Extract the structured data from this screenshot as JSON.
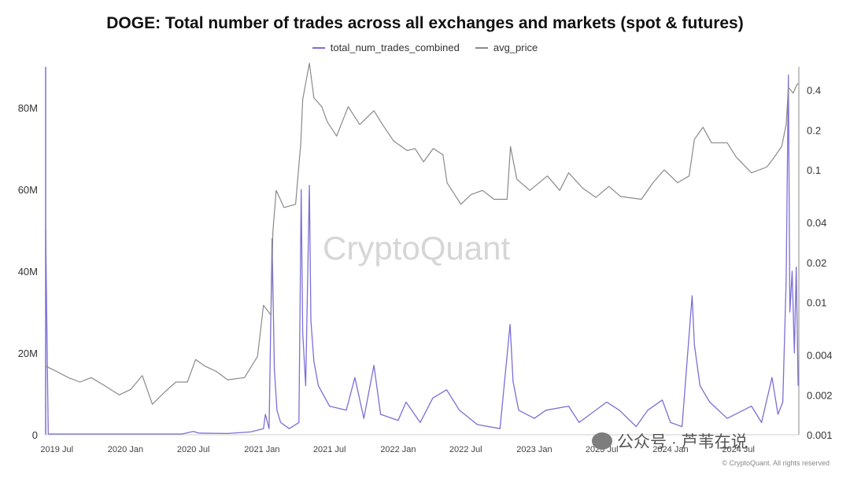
{
  "title": "DOGE: Total number of trades across all exchanges and markets (spot & futures)",
  "legend": [
    {
      "label": "total_num_trades_combined",
      "color": "#7b6fd6"
    },
    {
      "label": "avg_price",
      "color": "#8a8a8a"
    }
  ],
  "watermark": "CryptoQuant",
  "wechat_label": "公众号 · 芦苇在说",
  "copyright": "© CryptoQuant. All rights reserved",
  "chart_data": {
    "type": "line",
    "x_axis": {
      "type": "date",
      "range": [
        "2019-06-01",
        "2024-12-10"
      ],
      "tick_labels": [
        {
          "label": "2019 Jul",
          "date": "2019-07-01"
        },
        {
          "label": "2020 Jan",
          "date": "2020-01-01"
        },
        {
          "label": "2020 Jul",
          "date": "2020-07-01"
        },
        {
          "label": "2021 Jan",
          "date": "2021-01-01"
        },
        {
          "label": "2021 Jul",
          "date": "2021-07-01"
        },
        {
          "label": "2022 Jan",
          "date": "2022-01-01"
        },
        {
          "label": "2022 Jul",
          "date": "2022-07-01"
        },
        {
          "label": "2023 Jan",
          "date": "2023-01-01"
        },
        {
          "label": "2023 Jul",
          "date": "2023-07-01"
        },
        {
          "label": "2024 Jan",
          "date": "2024-01-01"
        },
        {
          "label": "2024 Jul",
          "date": "2024-07-01"
        }
      ]
    },
    "y_left": {
      "range": [
        0,
        90000000
      ],
      "ticks": [
        {
          "label": "0",
          "value": 0
        },
        {
          "label": "20M",
          "value": 20000000
        },
        {
          "label": "40M",
          "value": 40000000
        },
        {
          "label": "60M",
          "value": 60000000
        },
        {
          "label": "80M",
          "value": 80000000
        }
      ]
    },
    "y_right": {
      "scale": "log",
      "range": [
        0.001,
        0.6
      ],
      "ticks": [
        {
          "label": "0.001",
          "value": 0.001
        },
        {
          "label": "0.002",
          "value": 0.002
        },
        {
          "label": "0.004",
          "value": 0.004
        },
        {
          "label": "0.01",
          "value": 0.01
        },
        {
          "label": "0.02",
          "value": 0.02
        },
        {
          "label": "0.04",
          "value": 0.04
        },
        {
          "label": "0.1",
          "value": 0.1
        },
        {
          "label": "0.2",
          "value": 0.2
        },
        {
          "label": "0.4",
          "value": 0.4
        }
      ]
    },
    "grid": false,
    "legend_position": "top-center",
    "series": [
      {
        "name": "total_num_trades_combined",
        "axis": "left",
        "color": "#7b6fd6",
        "points": [
          [
            "2019-06-01",
            50000000
          ],
          [
            "2019-06-08",
            200000
          ],
          [
            "2019-09-01",
            200000
          ],
          [
            "2020-01-01",
            200000
          ],
          [
            "2020-06-01",
            200000
          ],
          [
            "2020-07-01",
            800000
          ],
          [
            "2020-07-15",
            400000
          ],
          [
            "2020-10-01",
            300000
          ],
          [
            "2020-12-01",
            700000
          ],
          [
            "2021-01-05",
            1500000
          ],
          [
            "2021-01-10",
            5000000
          ],
          [
            "2021-01-20",
            1500000
          ],
          [
            "2021-01-28",
            48000000
          ],
          [
            "2021-02-03",
            16000000
          ],
          [
            "2021-02-10",
            6000000
          ],
          [
            "2021-02-20",
            3000000
          ],
          [
            "2021-03-15",
            1500000
          ],
          [
            "2021-04-10",
            3000000
          ],
          [
            "2021-04-16",
            60000000
          ],
          [
            "2021-04-20",
            25000000
          ],
          [
            "2021-04-28",
            12000000
          ],
          [
            "2021-05-08",
            61000000
          ],
          [
            "2021-05-12",
            28000000
          ],
          [
            "2021-05-20",
            18000000
          ],
          [
            "2021-06-01",
            12000000
          ],
          [
            "2021-07-01",
            7000000
          ],
          [
            "2021-08-15",
            6000000
          ],
          [
            "2021-09-07",
            14000000
          ],
          [
            "2021-10-01",
            4000000
          ],
          [
            "2021-10-28",
            17000000
          ],
          [
            "2021-11-15",
            5000000
          ],
          [
            "2022-01-01",
            3500000
          ],
          [
            "2022-01-22",
            8000000
          ],
          [
            "2022-03-01",
            3000000
          ],
          [
            "2022-04-04",
            9000000
          ],
          [
            "2022-05-11",
            11000000
          ],
          [
            "2022-06-14",
            6000000
          ],
          [
            "2022-08-01",
            2500000
          ],
          [
            "2022-10-01",
            1500000
          ],
          [
            "2022-10-28",
            27000000
          ],
          [
            "2022-11-05",
            13000000
          ],
          [
            "2022-11-20",
            6000000
          ],
          [
            "2023-01-01",
            4000000
          ],
          [
            "2023-02-01",
            6000000
          ],
          [
            "2023-04-03",
            7000000
          ],
          [
            "2023-05-01",
            3000000
          ],
          [
            "2023-07-14",
            8000000
          ],
          [
            "2023-08-17",
            6000000
          ],
          [
            "2023-10-01",
            2000000
          ],
          [
            "2023-11-01",
            6000000
          ],
          [
            "2023-12-10",
            8500000
          ],
          [
            "2024-01-01",
            3000000
          ],
          [
            "2024-02-01",
            2000000
          ],
          [
            "2024-02-28",
            34000000
          ],
          [
            "2024-03-05",
            22000000
          ],
          [
            "2024-03-20",
            12000000
          ],
          [
            "2024-04-15",
            8000000
          ],
          [
            "2024-06-01",
            4000000
          ],
          [
            "2024-08-05",
            7000000
          ],
          [
            "2024-09-01",
            3000000
          ],
          [
            "2024-09-29",
            14000000
          ],
          [
            "2024-10-15",
            5000000
          ],
          [
            "2024-10-28",
            8000000
          ],
          [
            "2024-11-06",
            38000000
          ],
          [
            "2024-11-12",
            88000000
          ],
          [
            "2024-11-16",
            30000000
          ],
          [
            "2024-11-22",
            40000000
          ],
          [
            "2024-11-28",
            20000000
          ],
          [
            "2024-12-03",
            41000000
          ],
          [
            "2024-12-08",
            12000000
          ]
        ]
      },
      {
        "name": "avg_price",
        "axis": "right",
        "color": "#8a8a8a",
        "points": [
          [
            "2019-06-01",
            0.0033
          ],
          [
            "2019-07-01",
            0.003
          ],
          [
            "2019-08-01",
            0.0027
          ],
          [
            "2019-09-01",
            0.0025
          ],
          [
            "2019-10-01",
            0.0027
          ],
          [
            "2019-11-01",
            0.0024
          ],
          [
            "2019-12-15",
            0.002
          ],
          [
            "2020-01-15",
            0.0022
          ],
          [
            "2020-02-15",
            0.0028
          ],
          [
            "2020-03-13",
            0.0017
          ],
          [
            "2020-04-15",
            0.0021
          ],
          [
            "2020-05-15",
            0.0025
          ],
          [
            "2020-06-15",
            0.0025
          ],
          [
            "2020-07-07",
            0.0037
          ],
          [
            "2020-08-01",
            0.0033
          ],
          [
            "2020-09-01",
            0.003
          ],
          [
            "2020-10-01",
            0.0026
          ],
          [
            "2020-11-15",
            0.0027
          ],
          [
            "2020-12-20",
            0.0039
          ],
          [
            "2021-01-05",
            0.0095
          ],
          [
            "2021-01-25",
            0.008
          ],
          [
            "2021-01-30",
            0.034
          ],
          [
            "2021-02-08",
            0.07
          ],
          [
            "2021-03-01",
            0.052
          ],
          [
            "2021-04-01",
            0.055
          ],
          [
            "2021-04-15",
            0.16
          ],
          [
            "2021-04-20",
            0.34
          ],
          [
            "2021-05-08",
            0.64
          ],
          [
            "2021-05-20",
            0.35
          ],
          [
            "2021-06-10",
            0.3
          ],
          [
            "2021-06-25",
            0.23
          ],
          [
            "2021-07-20",
            0.18
          ],
          [
            "2021-08-20",
            0.3
          ],
          [
            "2021-09-20",
            0.22
          ],
          [
            "2021-10-28",
            0.28
          ],
          [
            "2021-11-20",
            0.22
          ],
          [
            "2021-12-20",
            0.165
          ],
          [
            "2022-01-25",
            0.14
          ],
          [
            "2022-02-15",
            0.145
          ],
          [
            "2022-03-10",
            0.115
          ],
          [
            "2022-04-05",
            0.145
          ],
          [
            "2022-05-01",
            0.13
          ],
          [
            "2022-05-12",
            0.08
          ],
          [
            "2022-06-18",
            0.055
          ],
          [
            "2022-07-15",
            0.065
          ],
          [
            "2022-08-15",
            0.07
          ],
          [
            "2022-09-15",
            0.06
          ],
          [
            "2022-10-20",
            0.06
          ],
          [
            "2022-10-29",
            0.15
          ],
          [
            "2022-11-15",
            0.085
          ],
          [
            "2022-12-20",
            0.07
          ],
          [
            "2023-02-05",
            0.09
          ],
          [
            "2023-03-10",
            0.07
          ],
          [
            "2023-04-03",
            0.095
          ],
          [
            "2023-05-10",
            0.073
          ],
          [
            "2023-06-15",
            0.062
          ],
          [
            "2023-07-20",
            0.075
          ],
          [
            "2023-08-20",
            0.063
          ],
          [
            "2023-10-15",
            0.06
          ],
          [
            "2023-11-15",
            0.08
          ],
          [
            "2023-12-15",
            0.1
          ],
          [
            "2024-01-20",
            0.08
          ],
          [
            "2024-02-20",
            0.09
          ],
          [
            "2024-03-05",
            0.17
          ],
          [
            "2024-03-28",
            0.21
          ],
          [
            "2024-04-20",
            0.16
          ],
          [
            "2024-06-01",
            0.16
          ],
          [
            "2024-06-25",
            0.125
          ],
          [
            "2024-08-05",
            0.095
          ],
          [
            "2024-09-15",
            0.105
          ],
          [
            "2024-10-01",
            0.12
          ],
          [
            "2024-10-25",
            0.15
          ],
          [
            "2024-11-06",
            0.22
          ],
          [
            "2024-11-12",
            0.42
          ],
          [
            "2024-11-25",
            0.38
          ],
          [
            "2024-12-03",
            0.43
          ],
          [
            "2024-12-08",
            0.45
          ]
        ]
      }
    ]
  }
}
